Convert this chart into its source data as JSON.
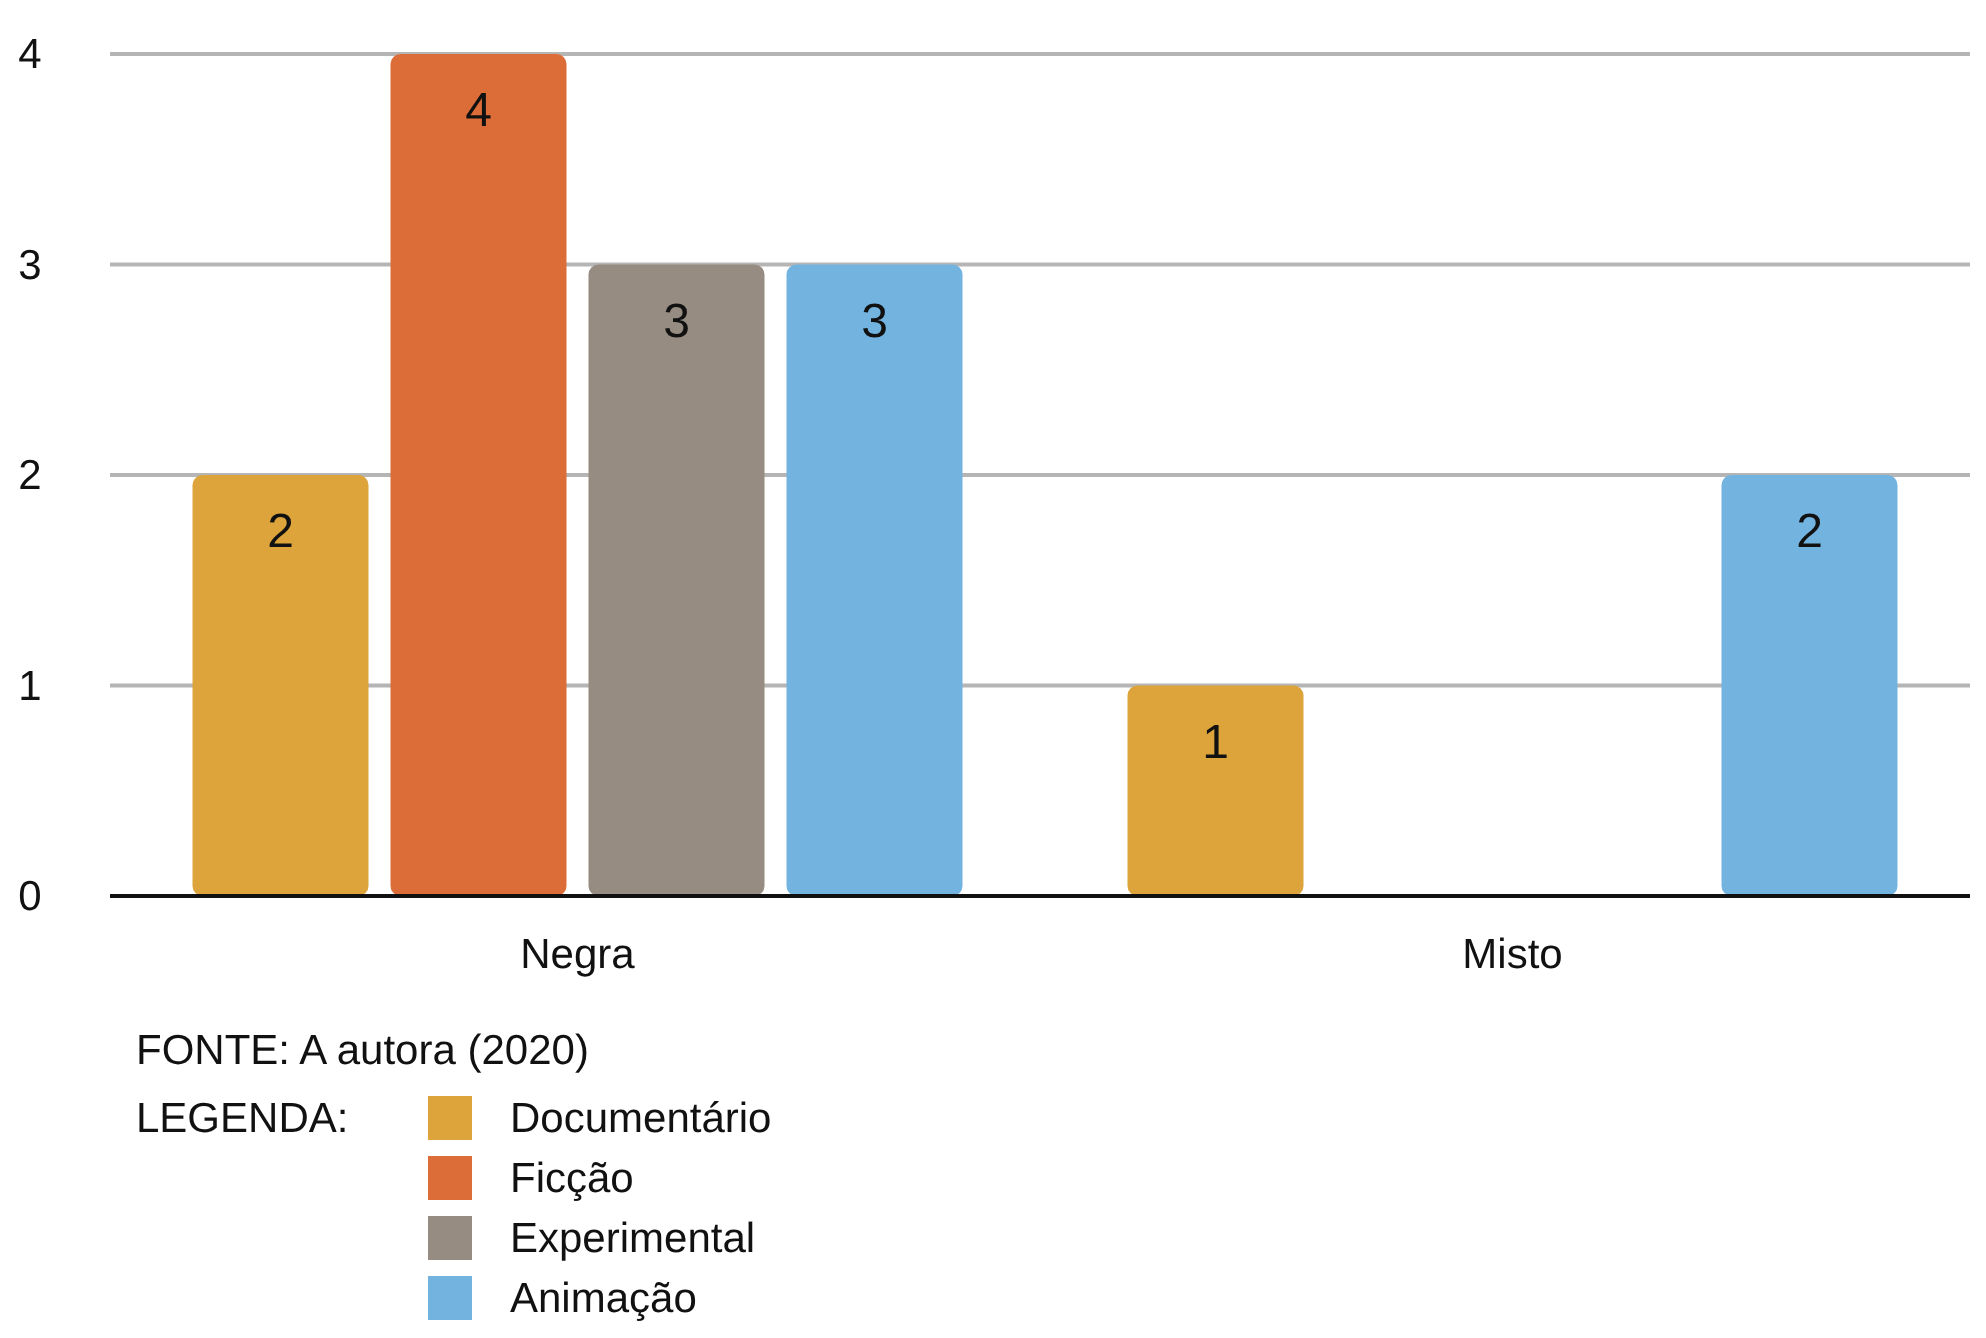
{
  "chart_data": {
    "type": "bar",
    "categories": [
      "Negra",
      "Misto"
    ],
    "series": [
      {
        "name": "Documentário",
        "color": "#dca43a",
        "values": [
          2,
          1
        ]
      },
      {
        "name": "Ficção",
        "color": "#dc6c38",
        "values": [
          4,
          null
        ]
      },
      {
        "name": "Experimental",
        "color": "#978c82",
        "values": [
          3,
          null
        ]
      },
      {
        "name": "Animação",
        "color": "#72b3e0",
        "values": [
          3,
          2
        ]
      }
    ],
    "ylim": [
      0,
      4
    ],
    "yticks": [
      0,
      1,
      2,
      3,
      4
    ],
    "grid": "y",
    "data_labels": true,
    "legend": "bottom left",
    "legend_title": "LEGENDA:",
    "annotations": [
      "FONTE: A autora (2020)"
    ]
  }
}
